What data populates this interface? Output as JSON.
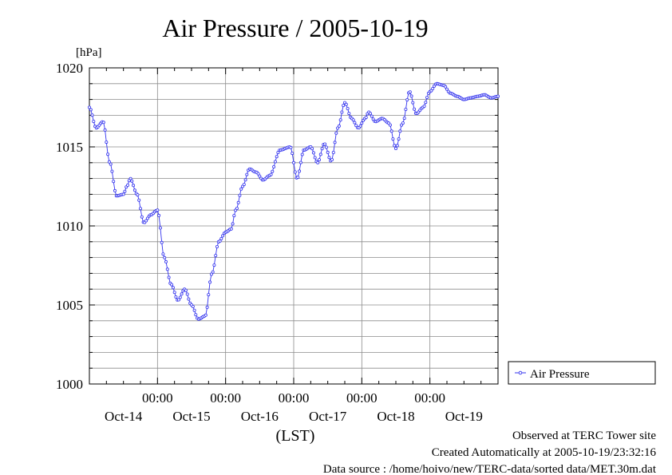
{
  "chart_data": {
    "type": "line",
    "title": "Air Pressure / 2005-10-19",
    "ylabel": "[hPa]",
    "xlabel": "(LST)",
    "ylim": [
      1000,
      1020
    ],
    "xlim_days": [
      0,
      6
    ],
    "yticks": [
      1000,
      1005,
      1010,
      1015,
      1020
    ],
    "xticks": [
      {
        "day": 1,
        "time": "00:00"
      },
      {
        "day": 2,
        "time": "00:00"
      },
      {
        "day": 3,
        "time": "00:00"
      },
      {
        "day": 4,
        "time": "00:00"
      },
      {
        "day": 5,
        "time": "00:00"
      }
    ],
    "day_labels": [
      {
        "day": 0.5,
        "label": "Oct-14"
      },
      {
        "day": 1.5,
        "label": "Oct-15"
      },
      {
        "day": 2.5,
        "label": "Oct-16"
      },
      {
        "day": 3.5,
        "label": "Oct-17"
      },
      {
        "day": 4.5,
        "label": "Oct-18"
      },
      {
        "day": 5.5,
        "label": "Oct-19"
      }
    ],
    "grid": true,
    "legend_position": "right",
    "series": [
      {
        "name": "Air Pressure",
        "color": "#3333ee",
        "x_days": [
          0,
          0.1,
          0.2,
          0.3,
          0.4,
          0.5,
          0.55,
          0.6,
          0.7,
          0.8,
          0.9,
          1.0,
          1.1,
          1.2,
          1.3,
          1.4,
          1.5,
          1.6,
          1.7,
          1.8,
          1.9,
          2.0,
          2.08,
          2.15,
          2.25,
          2.35,
          2.45,
          2.55,
          2.65,
          2.8,
          2.95,
          3.05,
          3.15,
          3.25,
          3.35,
          3.45,
          3.55,
          3.65,
          3.75,
          3.85,
          3.95,
          4.05,
          4.1,
          4.2,
          4.3,
          4.4,
          4.5,
          4.6,
          4.7,
          4.8,
          4.9,
          5.0,
          5.1,
          5.2,
          5.3,
          5.4,
          5.5,
          5.6,
          5.7,
          5.8,
          5.9,
          6.0
        ],
        "values": [
          1017.5,
          1016.2,
          1016.6,
          1014.0,
          1011.9,
          1012.0,
          1012.5,
          1013.0,
          1012.0,
          1010.2,
          1010.7,
          1011.0,
          1008.0,
          1006.3,
          1005.3,
          1006.0,
          1005.0,
          1004.1,
          1004.3,
          1007.0,
          1009.0,
          1009.6,
          1009.8,
          1011.0,
          1012.5,
          1013.6,
          1013.4,
          1012.9,
          1013.2,
          1014.8,
          1015.0,
          1013.0,
          1014.8,
          1015.0,
          1014.0,
          1015.2,
          1014.1,
          1016.2,
          1017.8,
          1016.8,
          1016.2,
          1016.8,
          1017.2,
          1016.6,
          1016.8,
          1016.5,
          1014.9,
          1016.5,
          1018.5,
          1017.1,
          1017.5,
          1018.5,
          1019.0,
          1018.9,
          1018.4,
          1018.2,
          1018.0,
          1018.1,
          1018.2,
          1018.3,
          1018.1,
          1018.2
        ]
      }
    ]
  },
  "footer": {
    "site": "Observed at TERC Tower site",
    "created": "Created Automatically at 2005-10-19/23:32:16",
    "source": "Data source : /home/hoivo/new/TERC-data/sorted  data/MET.30m.dat"
  }
}
